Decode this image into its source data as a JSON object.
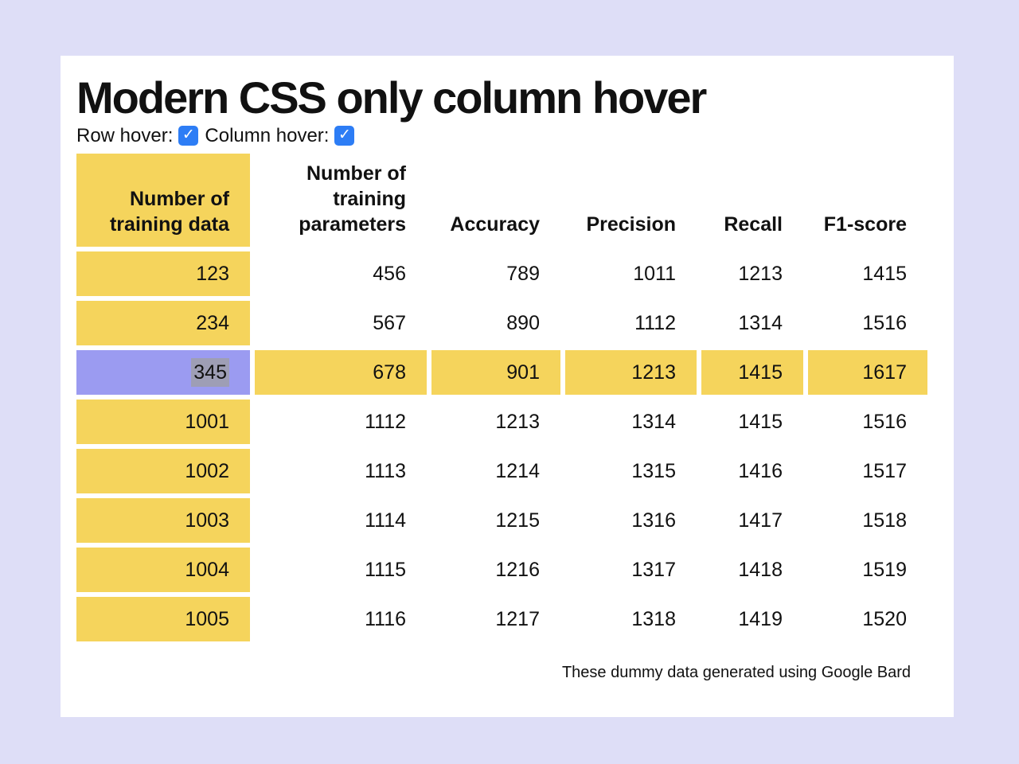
{
  "page": {
    "title": "Modern CSS only column hover",
    "footer_note": "These dummy data generated using Google Bard"
  },
  "controls": {
    "row_hover_label": "Row hover:",
    "column_hover_label": "Column hover:",
    "row_hover_checked": true,
    "column_hover_checked": true
  },
  "icons": {
    "checkmark": "✓"
  },
  "colors": {
    "page_bg": "#dedef7",
    "card_bg": "#ffffff",
    "cell_yellow": "#f5d45c",
    "hover_purple": "#9b9bf1",
    "checkbox_blue": "#2d7df5",
    "selection_gray": "#9e9eb5"
  },
  "table": {
    "headers": [
      "Number of training data",
      "Number of training parameters",
      "Accuracy",
      "Precision",
      "Recall",
      "F1-score"
    ],
    "rows": [
      {
        "training_data": "123",
        "values": [
          "456",
          "789",
          "1011",
          "1213",
          "1415"
        ],
        "hovered": false,
        "selected": false
      },
      {
        "training_data": "234",
        "values": [
          "567",
          "890",
          "1112",
          "1314",
          "1516"
        ],
        "hovered": false,
        "selected": false
      },
      {
        "training_data": "345",
        "values": [
          "678",
          "901",
          "1213",
          "1415",
          "1617"
        ],
        "hovered": true,
        "selected": true
      },
      {
        "training_data": "1001",
        "values": [
          "1112",
          "1213",
          "1314",
          "1415",
          "1516"
        ],
        "hovered": false,
        "selected": false
      },
      {
        "training_data": "1002",
        "values": [
          "1113",
          "1214",
          "1315",
          "1416",
          "1517"
        ],
        "hovered": false,
        "selected": false
      },
      {
        "training_data": "1003",
        "values": [
          "1114",
          "1215",
          "1316",
          "1417",
          "1518"
        ],
        "hovered": false,
        "selected": false
      },
      {
        "training_data": "1004",
        "values": [
          "1115",
          "1216",
          "1317",
          "1418",
          "1519"
        ],
        "hovered": false,
        "selected": false
      },
      {
        "training_data": "1005",
        "values": [
          "1116",
          "1217",
          "1318",
          "1419",
          "1520"
        ],
        "hovered": false,
        "selected": false
      }
    ]
  }
}
